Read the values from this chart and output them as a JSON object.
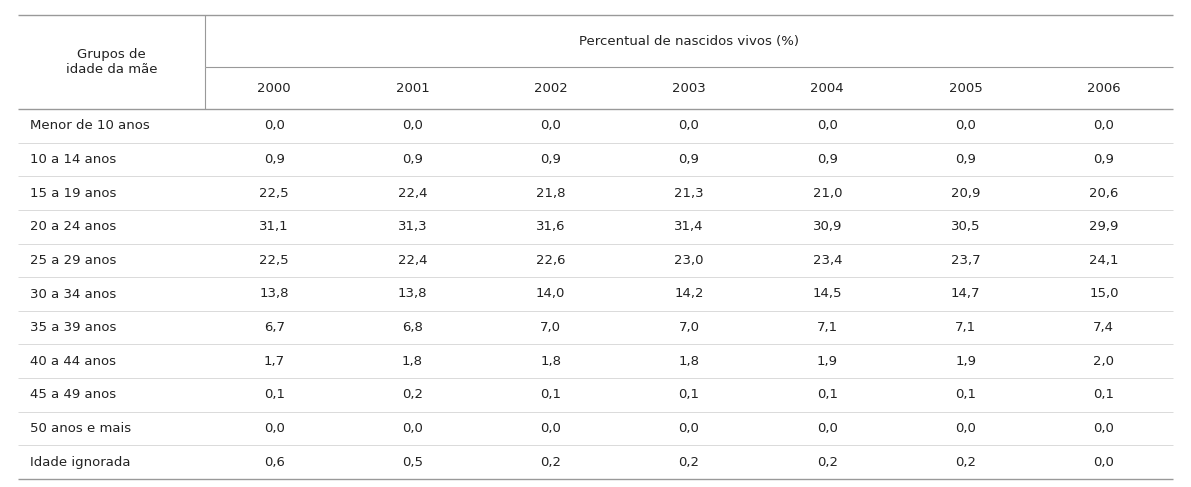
{
  "header_col": "Grupos de\nidade da mãe",
  "header_span": "Percentual de nascidos vivos (%)",
  "years": [
    "2000",
    "2001",
    "2002",
    "2003",
    "2004",
    "2005",
    "2006"
  ],
  "row_labels": [
    "Menor de 10 anos",
    "10 a 14 anos",
    "15 a 19 anos",
    "20 a 24 anos",
    "25 a 29 anos",
    "30 a 34 anos",
    "35 a 39 anos",
    "40 a 44 anos",
    "45 a 49 anos",
    "50 anos e mais",
    "Idade ignorada"
  ],
  "table_data": [
    [
      "0,0",
      "0,0",
      "0,0",
      "0,0",
      "0,0",
      "0,0",
      "0,0"
    ],
    [
      "0,9",
      "0,9",
      "0,9",
      "0,9",
      "0,9",
      "0,9",
      "0,9"
    ],
    [
      "22,5",
      "22,4",
      "21,8",
      "21,3",
      "21,0",
      "20,9",
      "20,6"
    ],
    [
      "31,1",
      "31,3",
      "31,6",
      "31,4",
      "30,9",
      "30,5",
      "29,9"
    ],
    [
      "22,5",
      "22,4",
      "22,6",
      "23,0",
      "23,4",
      "23,7",
      "24,1"
    ],
    [
      "13,8",
      "13,8",
      "14,0",
      "14,2",
      "14,5",
      "14,7",
      "15,0"
    ],
    [
      "6,7",
      "6,8",
      "7,0",
      "7,0",
      "7,1",
      "7,1",
      "7,4"
    ],
    [
      "1,7",
      "1,8",
      "1,8",
      "1,8",
      "1,9",
      "1,9",
      "2,0"
    ],
    [
      "0,1",
      "0,2",
      "0,1",
      "0,1",
      "0,1",
      "0,1",
      "0,1"
    ],
    [
      "0,0",
      "0,0",
      "0,0",
      "0,0",
      "0,0",
      "0,0",
      "0,0"
    ],
    [
      "0,6",
      "0,5",
      "0,2",
      "0,2",
      "0,2",
      "0,2",
      "0,0"
    ]
  ],
  "bg_color": "#ffffff",
  "text_color": "#222222",
  "line_color": "#999999",
  "thin_line_color": "#cccccc",
  "font_size": 9.5,
  "font_size_header": 9.5
}
